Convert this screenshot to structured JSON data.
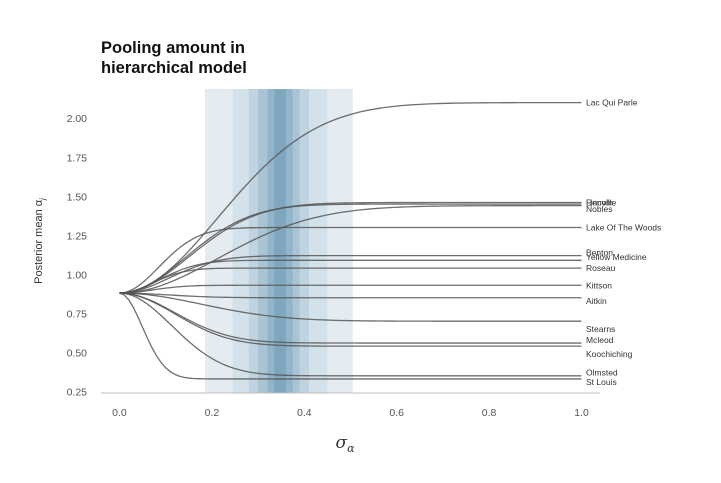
{
  "chart_data": {
    "type": "line",
    "title": [
      "Pooling amount in",
      "hierarchical model"
    ],
    "xlabel": "σ",
    "xlabel_sub": "α",
    "ylabel": "Posterior mean α",
    "ylabel_sub": "j",
    "xlim": [
      -0.04,
      1.04
    ],
    "ylim": [
      0.24,
      2.2
    ],
    "xticks": [
      0.0,
      0.2,
      0.4,
      0.6,
      0.8,
      1.0
    ],
    "xtick_labels": [
      "0.0",
      "0.2",
      "0.4",
      "0.6",
      "0.8",
      "1.0"
    ],
    "yticks": [
      0.25,
      0.5,
      0.75,
      1.0,
      1.25,
      1.5,
      1.75,
      2.0
    ],
    "ytick_labels": [
      "0.25",
      "0.50",
      "0.75",
      "1.00",
      "1.25",
      "1.50",
      "1.75",
      "2.00"
    ],
    "grid": false,
    "start_value": 0.88,
    "shaded_bands": [
      {
        "x0": 0.185,
        "x1": 0.505,
        "color": "#e4ecf2"
      },
      {
        "x0": 0.245,
        "x1": 0.45,
        "color": "#d3e1eb"
      },
      {
        "x0": 0.28,
        "x1": 0.41,
        "color": "#bfd3e0"
      },
      {
        "x0": 0.3,
        "x1": 0.39,
        "color": "#a9c4d5"
      },
      {
        "x0": 0.32,
        "x1": 0.375,
        "color": "#93b5ca"
      },
      {
        "x0": 0.335,
        "x1": 0.36,
        "color": "#7fa6bf"
      }
    ],
    "series": [
      {
        "name": "Lac Qui Parle",
        "final": 2.1,
        "k": 0.3
      },
      {
        "name": "Lincoln",
        "final": 1.46,
        "k": 0.21
      },
      {
        "name": "Renville",
        "final": 1.45,
        "k": 0.2
      },
      {
        "name": "Nobles",
        "final": 1.44,
        "k": 0.3
      },
      {
        "name": "Lake Of The Woods",
        "final": 1.3,
        "k": 0.12
      },
      {
        "name": "Benton",
        "final": 1.12,
        "k": 0.15
      },
      {
        "name": "Yellow Medicine",
        "final": 1.09,
        "k": 0.12
      },
      {
        "name": "Roseau",
        "final": 1.04,
        "k": 0.1
      },
      {
        "name": "Kittson",
        "final": 0.93,
        "k": 0.1
      },
      {
        "name": "Aitkin",
        "final": 0.85,
        "k": 0.15
      },
      {
        "name": "Stearns",
        "final": 0.7,
        "k": 0.25
      },
      {
        "name": "Mcleod",
        "final": 0.56,
        "k": 0.17
      },
      {
        "name": "Koochiching",
        "final": 0.54,
        "k": 0.17
      },
      {
        "name": "Olmsted",
        "final": 0.35,
        "k": 0.16
      },
      {
        "name": "St Louis",
        "final": 0.33,
        "k": 0.07
      }
    ],
    "label_offsets": [
      0,
      0,
      0.01,
      -0.02,
      0,
      0.02,
      0.02,
      0,
      0,
      -0.02,
      -0.05,
      0.02,
      -0.05,
      0.02,
      -0.02
    ]
  }
}
